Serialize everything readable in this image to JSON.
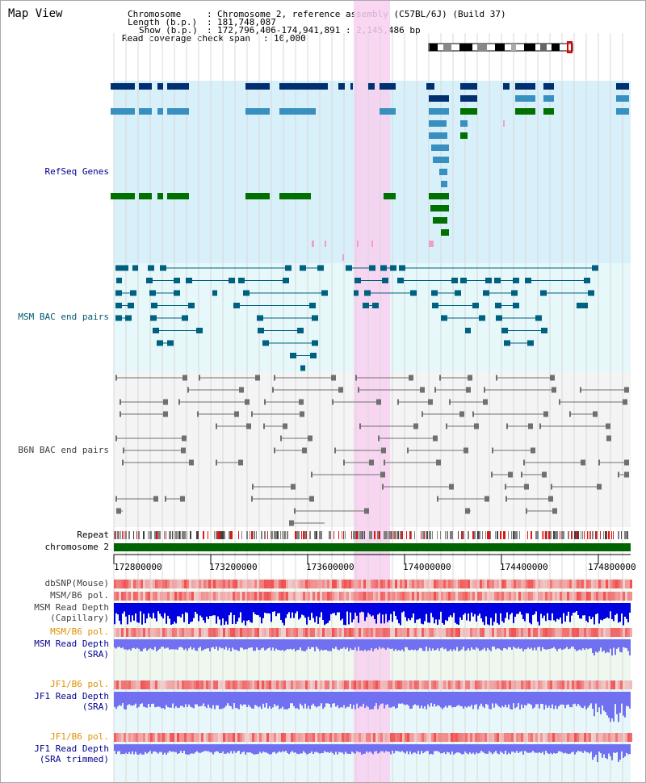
{
  "window_title": "Map View",
  "header": {
    "chromosome_label": "Chromosome",
    "chromosome_value": "Chromosome 2, reference assembly (C57BL/6J) (Build 37)",
    "length_label": "Length (b.p.)",
    "length_value": "181,748,087",
    "show_label": "Show (b.p.)",
    "show_value": "172,796,406-174,941,891 : 2,145,486 bp",
    "coverage_label": "Read coverage check span",
    "coverage_value": "10,000",
    "separator": ":"
  },
  "tracks": {
    "refseq": "RefSeq Genes",
    "msm_bac": "MSM BAC end pairs",
    "b6n_bac": "B6N BAC end pairs",
    "repeat": "Repeat",
    "chromosome": "chromosome 2",
    "dbsnp": "dbSNP(Mouse)",
    "msm_b6_pol_1": "MSM/B6 pol.",
    "msm_depth_cap_1": "MSM Read Depth",
    "msm_depth_cap_2": "(Capillary)",
    "msm_b6_pol_2": "MSM/B6 pol.",
    "msm_depth_sra_1": "MSM Read Depth",
    "msm_depth_sra_2": "(SRA)",
    "jf1_b6_pol_1": "JF1/B6 pol.",
    "jf1_depth_sra_1": "JF1 Read Depth",
    "jf1_depth_sra_2": "(SRA)",
    "jf1_b6_pol_2": "JF1/B6 pol.",
    "jf1_depth_trim_1": "JF1 Read Depth",
    "jf1_depth_trim_2": "(SRA trimmed)"
  },
  "axis": {
    "ticks": [
      "172800000",
      "173200000",
      "173600000",
      "174000000",
      "174400000",
      "174800000"
    ]
  },
  "colors": {
    "refseq_bg": "#d8f0fa",
    "bac_bg": "#e6f8fa",
    "b6n_bg": "#f4f4f4",
    "highlight": "#f8d0f0",
    "gene_dark": "#003070",
    "gene_mid": "#3890c0",
    "gene_green": "#007000",
    "msm_bac": "#006080",
    "b6n_bac": "#707070",
    "chromosome_bar": "#006400",
    "depth_cap": "#0000e0",
    "depth_sra": "#7070f0",
    "label_blue": "#000090",
    "label_msm_bac": "#005870",
    "label_orange": "#e09000",
    "label_dark": "#404040"
  }
}
